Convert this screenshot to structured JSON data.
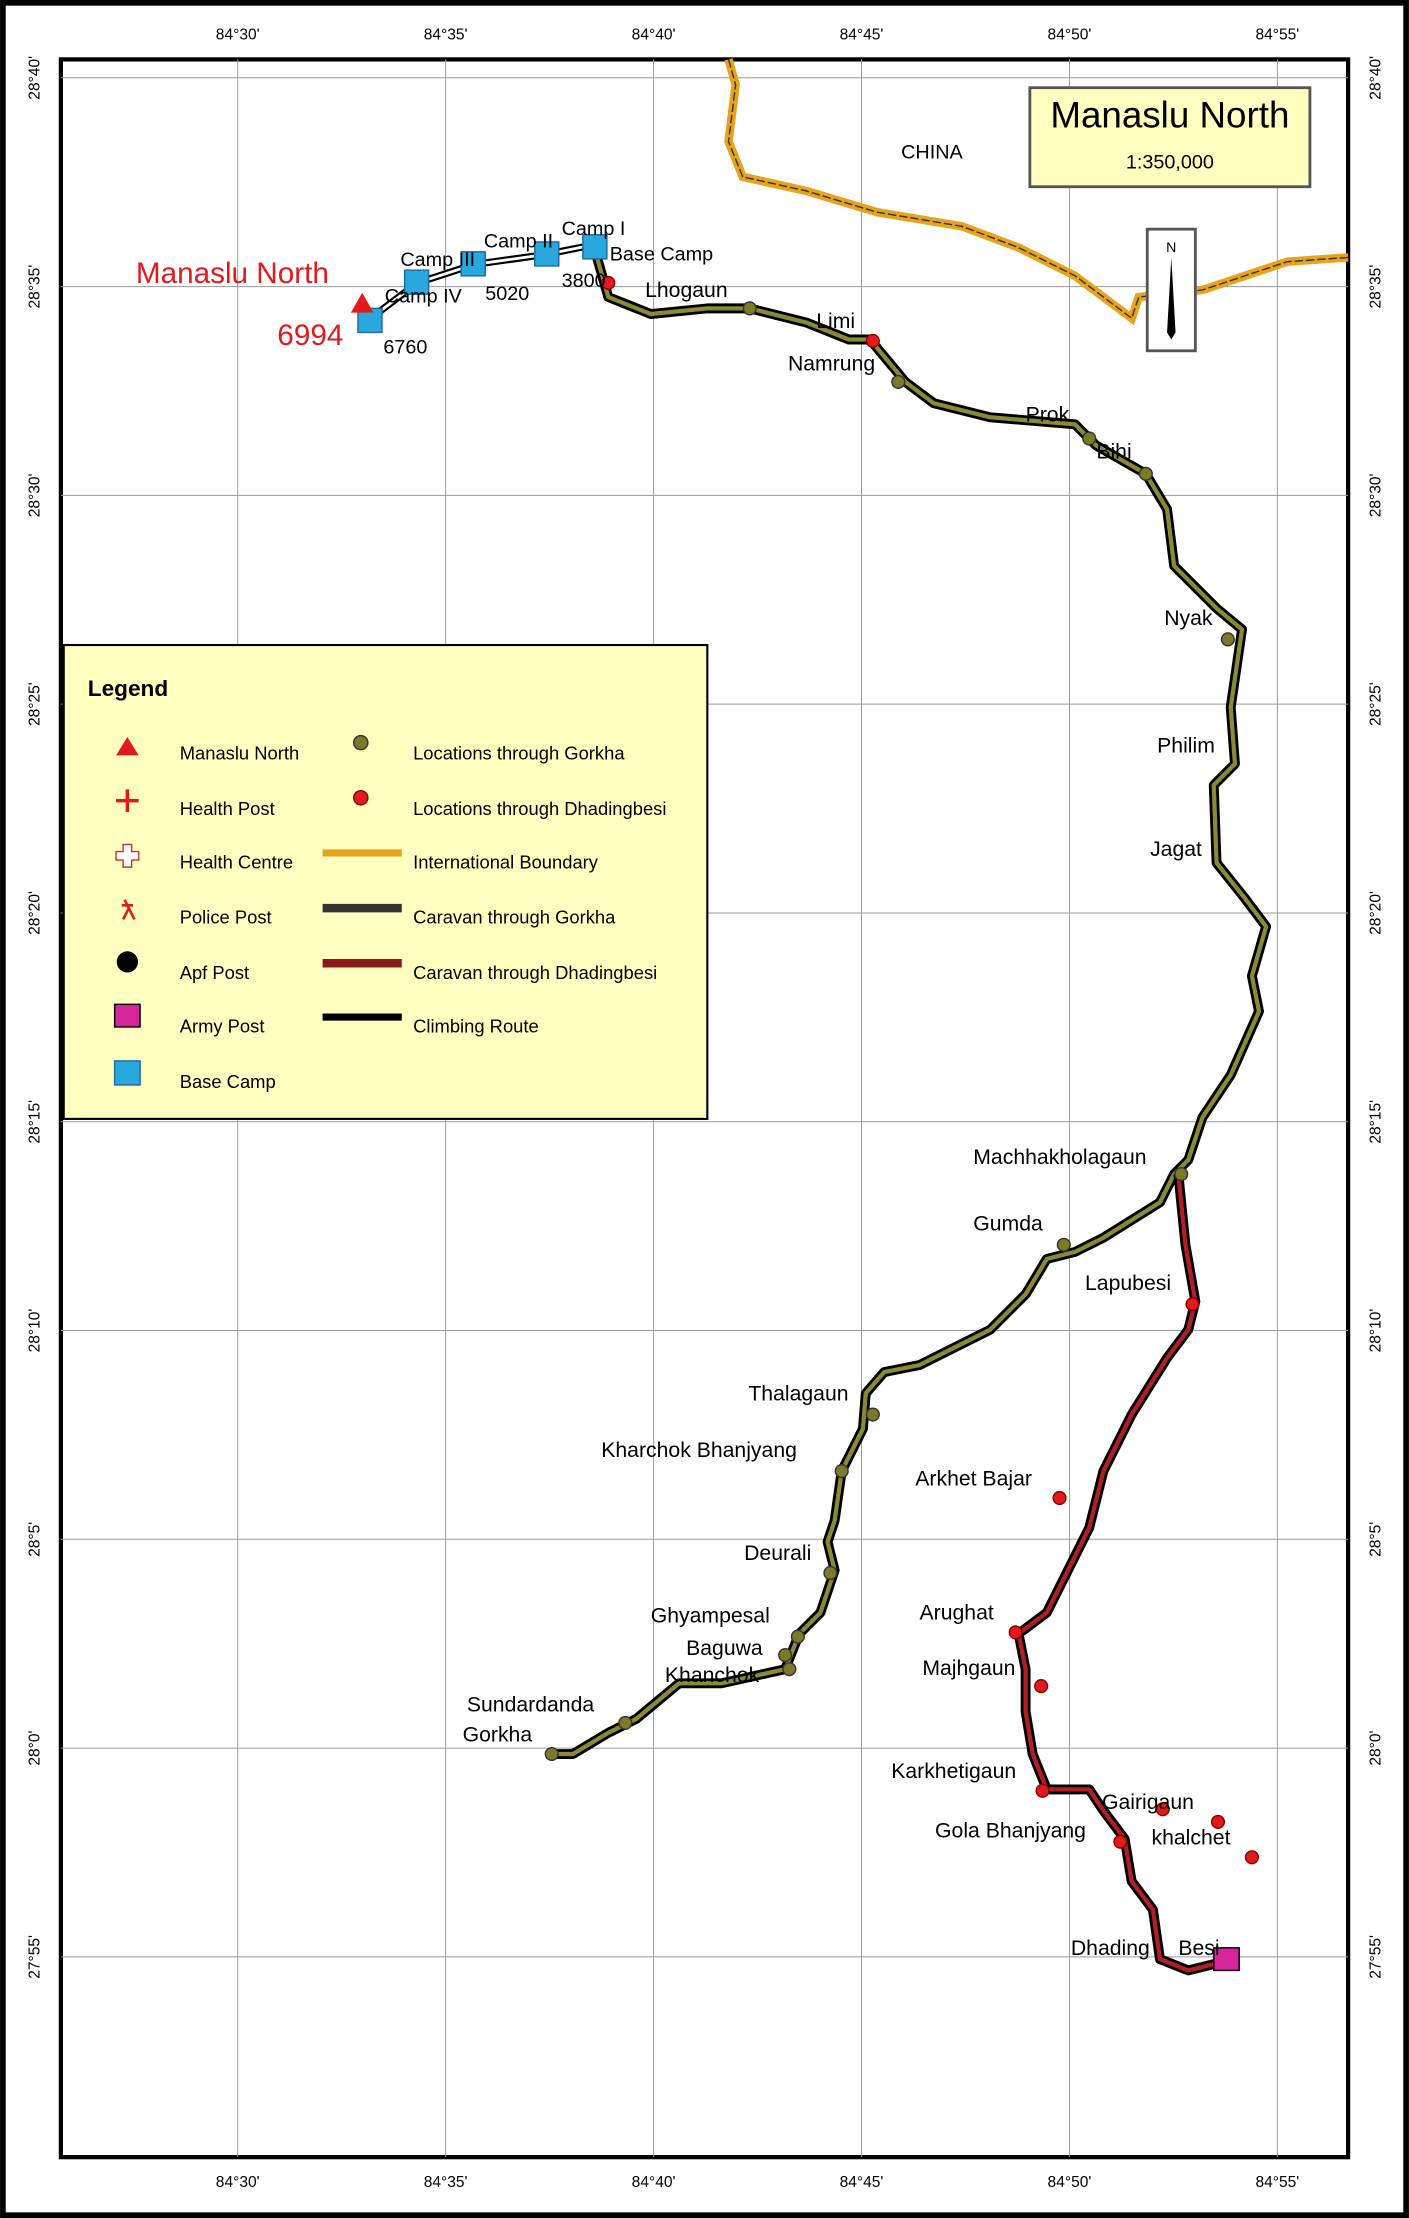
{
  "map": {
    "title": "Manaslu North",
    "scale": "1:350,000",
    "north": "N",
    "country": "CHINA",
    "peak": {
      "name": "Manaslu North",
      "elevation": "6994"
    },
    "camps": [
      "Base Camp",
      "Camp I",
      "Camp II",
      "Camp III",
      "Camp IV"
    ],
    "elevations": [
      "3800",
      "5020",
      "6760"
    ],
    "longitudes": [
      "84°30'",
      "84°35'",
      "84°40'",
      "84°45'",
      "84°50'",
      "84°55'"
    ],
    "latitudes": [
      "28°40'",
      "28°35'",
      "28°30'",
      "28°25'",
      "28°20'",
      "28°15'",
      "28°10'",
      "28°5'",
      "28°0'",
      "27°55'"
    ],
    "places": [
      "Lhogaun",
      "Limi",
      "Namrung",
      "Prok",
      "Bihi",
      "Nyak",
      "Philim",
      "Jagat",
      "Machhakholagaun",
      "Gumda",
      "Lapubesi",
      "Thalagaun",
      "Kharchok Bhanjyang",
      "Arkhet Bajar",
      "Deurali",
      "Ghyampesal",
      "Arughat",
      "Baguwa",
      "Majhgaun",
      "Khanchok",
      "Sundardanda",
      "Gorkha",
      "Karkhetigaun",
      "Gairigaun",
      "Gola Bhanjyang",
      "khalchet",
      "Dhading",
      "Besi"
    ]
  },
  "legend": {
    "title": "Legend",
    "items": [
      "Manaslu North",
      "Health Post",
      "Health Centre",
      "Police Post",
      "Apf Post",
      "Army Post",
      "Base Camp",
      "Locations through Gorkha",
      "Locations through Dhadingbesi",
      "International Boundary",
      "Caravan through Gorkha",
      "Caravan through Dhadingbesi",
      "Climbing Route"
    ]
  }
}
